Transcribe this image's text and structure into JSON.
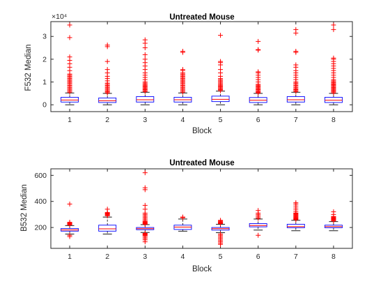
{
  "figure": {
    "background": "#ffffff"
  },
  "chart_data": [
    {
      "type": "boxplot",
      "title": "Untreated Mouse",
      "xlabel": "Block",
      "ylabel": "F532 Median",
      "exponent_label": "×10⁴",
      "categories": [
        "1",
        "2",
        "3",
        "4",
        "5",
        "6",
        "7",
        "8"
      ],
      "yticks": [
        0,
        1,
        2,
        3
      ],
      "ylim": [
        -0.3,
        3.65
      ],
      "yscale_factor": 10000,
      "grid": false,
      "colors": {
        "box": "#0000ff",
        "median": "#ff0000",
        "whisker": "#000000",
        "outlier": "#ff0000"
      },
      "boxes": [
        {
          "q1": 0.12,
          "median": 0.21,
          "q3": 0.33,
          "whisker_low": 0.0,
          "whisker_high": 0.52,
          "outliers": [
            0.55,
            0.6,
            0.65,
            0.7,
            0.75,
            0.8,
            0.85,
            0.9,
            0.95,
            1.0,
            1.05,
            1.1,
            1.15,
            1.2,
            1.25,
            1.3,
            1.35,
            1.5,
            1.65,
            1.8,
            1.95,
            2.1,
            2.95,
            3.5
          ]
        },
        {
          "q1": 0.1,
          "median": 0.18,
          "q3": 0.3,
          "whisker_low": 0.0,
          "whisker_high": 0.5,
          "outliers": [
            0.52,
            0.56,
            0.6,
            0.65,
            0.7,
            0.75,
            0.8,
            0.85,
            0.9,
            0.95,
            1.05,
            1.15,
            1.25,
            1.4,
            1.55,
            1.9,
            2.55,
            2.62
          ]
        },
        {
          "q1": 0.12,
          "median": 0.22,
          "q3": 0.36,
          "whisker_low": 0.0,
          "whisker_high": 0.55,
          "outliers": [
            0.58,
            0.62,
            0.66,
            0.7,
            0.74,
            0.78,
            0.82,
            0.86,
            0.9,
            0.95,
            1.0,
            1.1,
            1.2,
            1.3,
            1.4,
            1.55,
            1.7,
            1.85,
            2.0,
            2.2,
            2.5,
            2.7,
            2.85
          ]
        },
        {
          "q1": 0.12,
          "median": 0.22,
          "q3": 0.33,
          "whisker_low": 0.0,
          "whisker_high": 0.52,
          "outliers": [
            0.55,
            0.6,
            0.65,
            0.7,
            0.75,
            0.8,
            0.85,
            0.9,
            0.95,
            1.0,
            1.05,
            1.1,
            1.15,
            1.2,
            1.25,
            1.3,
            1.35,
            1.4,
            1.5,
            1.55,
            2.3,
            2.35
          ]
        },
        {
          "q1": 0.14,
          "median": 0.24,
          "q3": 0.38,
          "whisker_low": 0.0,
          "whisker_high": 0.6,
          "outliers": [
            0.62,
            0.66,
            0.7,
            0.74,
            0.78,
            0.82,
            0.86,
            0.9,
            0.95,
            1.0,
            1.05,
            1.1,
            1.15,
            1.25,
            1.4,
            1.55,
            1.75,
            1.85,
            1.9,
            3.05
          ]
        },
        {
          "q1": 0.1,
          "median": 0.2,
          "q3": 0.32,
          "whisker_low": 0.0,
          "whisker_high": 0.5,
          "outliers": [
            0.52,
            0.55,
            0.58,
            0.62,
            0.66,
            0.7,
            0.74,
            0.78,
            0.82,
            0.86,
            0.9,
            1.0,
            1.1,
            1.2,
            1.3,
            1.4,
            1.45,
            2.4,
            2.42,
            2.78
          ]
        },
        {
          "q1": 0.12,
          "median": 0.22,
          "q3": 0.36,
          "whisker_low": 0.0,
          "whisker_high": 0.55,
          "outliers": [
            0.58,
            0.62,
            0.66,
            0.7,
            0.75,
            0.8,
            0.85,
            0.9,
            0.95,
            1.0,
            1.1,
            1.2,
            1.3,
            1.4,
            1.5,
            1.65,
            1.75,
            2.3,
            2.35,
            3.15,
            3.3
          ]
        },
        {
          "q1": 0.1,
          "median": 0.2,
          "q3": 0.33,
          "whisker_low": 0.0,
          "whisker_high": 0.5,
          "outliers": [
            0.52,
            0.56,
            0.6,
            0.64,
            0.68,
            0.72,
            0.76,
            0.8,
            0.84,
            0.88,
            0.92,
            0.96,
            1.0,
            1.05,
            1.1,
            1.2,
            1.3,
            1.4,
            1.5,
            1.6,
            1.7,
            1.8,
            1.9,
            2.0,
            2.05,
            3.3,
            3.5
          ]
        }
      ]
    },
    {
      "type": "boxplot",
      "title": "Untreated Mouse",
      "xlabel": "Block",
      "ylabel": "B532 Median",
      "categories": [
        "1",
        "2",
        "3",
        "4",
        "5",
        "6",
        "7",
        "8"
      ],
      "yticks": [
        200,
        400,
        600
      ],
      "ylim": [
        40,
        650
      ],
      "grid": false,
      "colors": {
        "box": "#0000ff",
        "median": "#ff0000",
        "whisker": "#000000",
        "outlier": "#ff0000"
      },
      "boxes": [
        {
          "q1": 172,
          "median": 181,
          "q3": 192,
          "whisker_low": 150,
          "whisker_high": 215,
          "outliers": [
            130,
            140,
            220,
            224,
            228,
            232,
            236,
            240,
            380
          ]
        },
        {
          "q1": 172,
          "median": 190,
          "q3": 218,
          "whisker_low": 150,
          "whisker_high": 280,
          "outliers": [
            290,
            295,
            300,
            305,
            310,
            315,
            340
          ]
        },
        {
          "q1": 183,
          "median": 191,
          "q3": 200,
          "whisker_low": 162,
          "whisker_high": 222,
          "outliers": [
            90,
            105,
            115,
            125,
            135,
            140,
            145,
            150,
            155,
            225,
            230,
            235,
            240,
            245,
            250,
            260,
            270,
            280,
            290,
            300,
            310,
            340,
            370,
            490,
            505,
            620
          ]
        },
        {
          "q1": 185,
          "median": 203,
          "q3": 218,
          "whisker_low": 172,
          "whisker_high": 265,
          "outliers": [
            275,
            280
          ]
        },
        {
          "q1": 180,
          "median": 191,
          "q3": 200,
          "whisker_low": 160,
          "whisker_high": 225,
          "outliers": [
            70,
            80,
            90,
            100,
            110,
            120,
            130,
            140,
            150,
            230,
            235,
            240,
            245,
            250,
            255
          ]
        },
        {
          "q1": 205,
          "median": 215,
          "q3": 230,
          "whisker_low": 180,
          "whisker_high": 265,
          "outliers": [
            140,
            270,
            280,
            290,
            300,
            310,
            330
          ]
        },
        {
          "q1": 198,
          "median": 207,
          "q3": 225,
          "whisker_low": 175,
          "whisker_high": 255,
          "outliers": [
            260,
            265,
            270,
            275,
            280,
            285,
            290,
            295,
            300,
            305,
            310,
            320,
            335,
            350,
            365,
            380,
            390
          ]
        },
        {
          "q1": 198,
          "median": 207,
          "q3": 218,
          "whisker_low": 175,
          "whisker_high": 245,
          "outliers": [
            250,
            255,
            260,
            265,
            270,
            275,
            280,
            285,
            300,
            320
          ]
        }
      ]
    }
  ]
}
